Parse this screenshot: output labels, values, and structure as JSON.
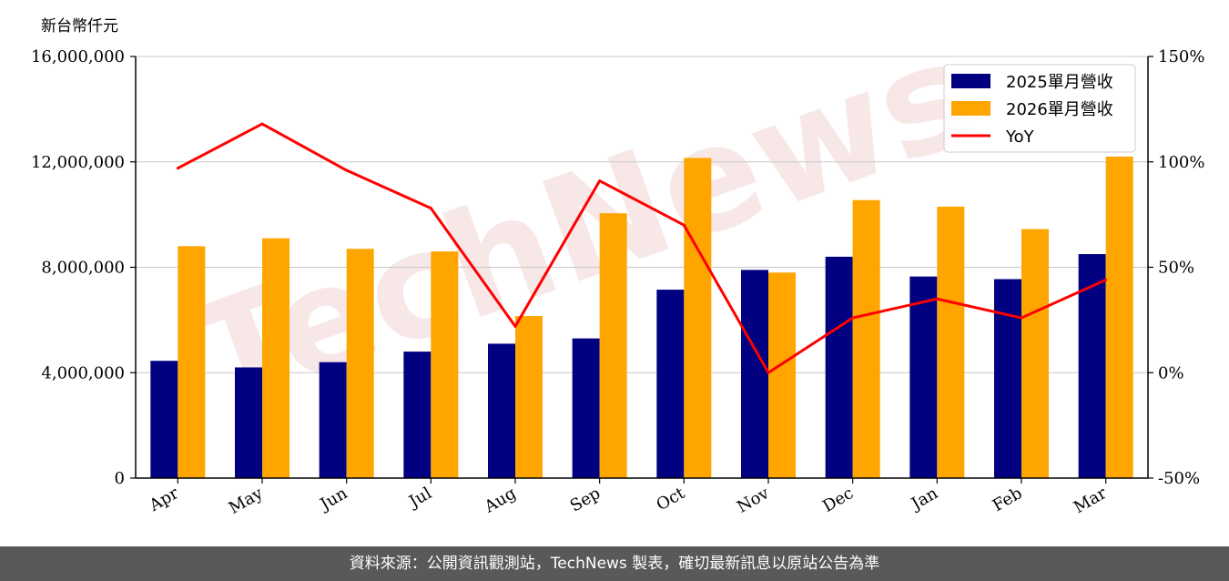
{
  "chart_data": {
    "type": "bar",
    "categories": [
      "Apr",
      "May",
      "Jun",
      "Jul",
      "Aug",
      "Sep",
      "Oct",
      "Nov",
      "Dec",
      "Jan",
      "Feb",
      "Mar"
    ],
    "series": [
      {
        "name": "2025單月營收",
        "kind": "bar",
        "axis": "left",
        "color": "#000080",
        "values": [
          4450000,
          4200000,
          4400000,
          4800000,
          5100000,
          5300000,
          7150000,
          7900000,
          8400000,
          7650000,
          7550000,
          8500000
        ]
      },
      {
        "name": "2026單月營收",
        "kind": "bar",
        "axis": "left",
        "color": "#FFA500",
        "values": [
          8800000,
          9100000,
          8700000,
          8600000,
          6150000,
          10050000,
          12150000,
          7800000,
          10550000,
          10300000,
          9450000,
          12200000
        ]
      },
      {
        "name": "YoY",
        "kind": "line",
        "axis": "right",
        "color": "#FF0000",
        "values": [
          97,
          118,
          96,
          78,
          22,
          91,
          70,
          0,
          26,
          35,
          26,
          44
        ]
      }
    ],
    "ylabel": "新台幣仟元",
    "ylim": [
      0,
      16000000
    ],
    "yticks": [
      0,
      4000000,
      8000000,
      12000000,
      16000000
    ],
    "ytick_labels": [
      "0",
      "4,000,000",
      "8,000,000",
      "12,000,000",
      "16,000,000"
    ],
    "y2lim": [
      -50,
      150
    ],
    "y2ticks": [
      -50,
      0,
      50,
      100,
      150
    ],
    "y2tick_labels": [
      "-50%",
      "0%",
      "50%",
      "100%",
      "150%"
    ],
    "grid": "horizontal",
    "legend_position": "top-right"
  },
  "watermark": "TechNews",
  "footer": {
    "text": "資料來源：公開資訊觀測站，TechNews 製表，確切最新訊息以原站公告為準"
  }
}
